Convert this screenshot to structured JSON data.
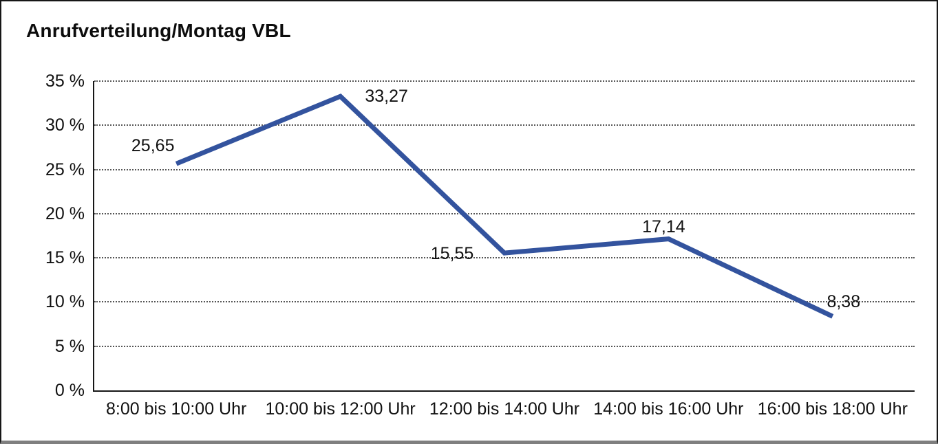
{
  "title": "Anrufverteilung/Montag VBL",
  "colors": {
    "line": "#33539E",
    "text": "#111111",
    "grid": "#555555",
    "axis": "#161616",
    "frame_border": "#161616",
    "frame_bottom": "#7f7f7f",
    "background": "#ffffff"
  },
  "chart_data": {
    "type": "line",
    "title": "Anrufverteilung/Montag VBL",
    "categories": [
      "8:00 bis 10:00 Uhr",
      "10:00 bis 12:00 Uhr",
      "12:00 bis 14:00 Uhr",
      "14:00 bis 16:00 Uhr",
      "16:00 bis 18:00 Uhr"
    ],
    "series": [
      {
        "name": "Anrufverteilung Montag VBL",
        "values": [
          25.65,
          33.27,
          15.55,
          17.14,
          8.38
        ],
        "data_labels": [
          "25,65",
          "33,27",
          "15,55",
          "17,14",
          "8,38"
        ],
        "color": "#33539E"
      }
    ],
    "xlabel": "",
    "ylabel": "",
    "ylim": [
      0,
      35
    ],
    "ytick_step": 5,
    "ytick_labels": [
      "0 %",
      "5 %",
      "10 %",
      "15 %",
      "20 %",
      "25 %",
      "30 %",
      "35 %"
    ],
    "grid": "horizontal-dotted",
    "legend_position": "none",
    "line_width": 7
  }
}
